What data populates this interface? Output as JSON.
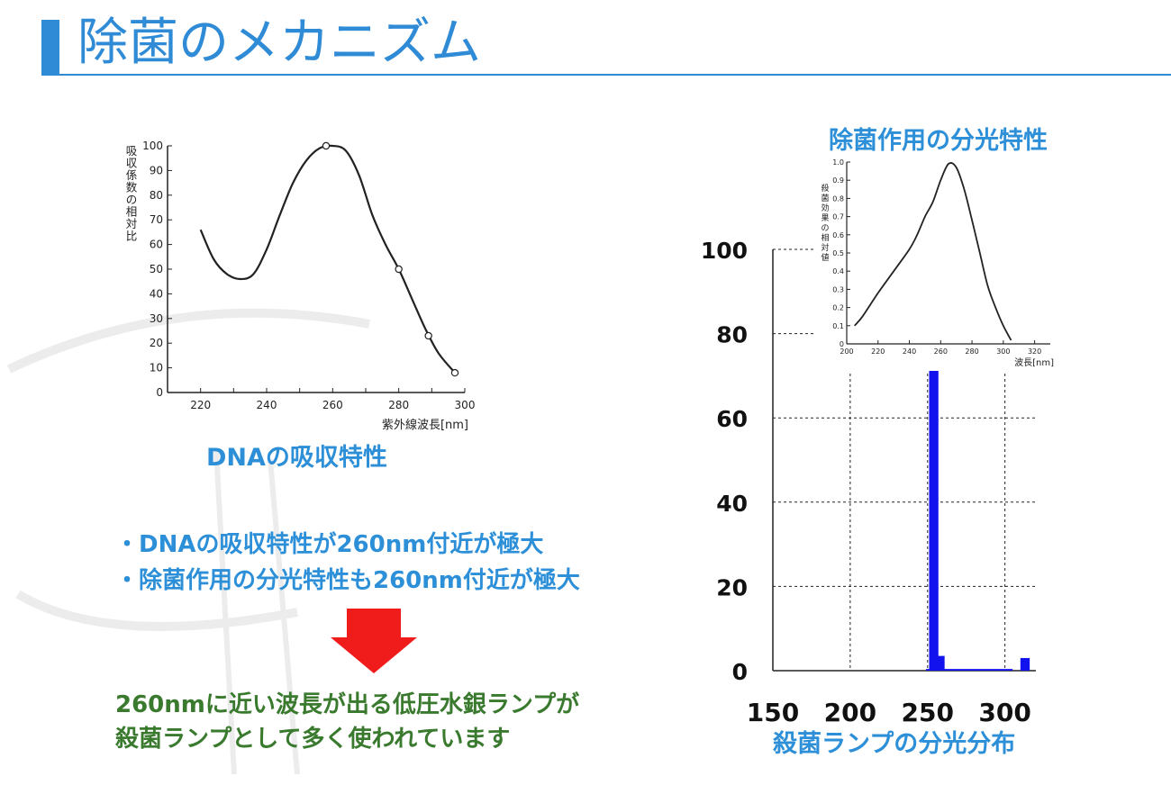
{
  "title": "除菌のメカニズム",
  "colors": {
    "accent": "#2f8bd6",
    "caption_blue": "#2c8fd8",
    "conclusion_green": "#3a7a2e",
    "arrow_red": "#f01c1c",
    "bar_blue": "#1212ee"
  },
  "bullets": [
    "・DNAの吸収特性が260nm付近が極大",
    "・除菌作用の分光特性も260nm付近が極大"
  ],
  "conclusion": [
    "260nmに近い波長が出る低圧水銀ランプが",
    "殺菌ランプとして多く使われています"
  ],
  "chart_data": [
    {
      "type": "line",
      "caption": "DNAの吸収特性",
      "ylabel": "吸収係数の相対比",
      "xlabel": "紫外線波長[nm]",
      "xlim": [
        210,
        300
      ],
      "ylim": [
        0,
        100
      ],
      "x_ticks": [
        220,
        240,
        260,
        280,
        300
      ],
      "y_ticks": [
        0,
        10,
        20,
        30,
        40,
        50,
        60,
        70,
        80,
        90,
        100
      ],
      "series": [
        {
          "x": [
            220,
            224,
            228,
            232,
            236,
            240,
            244,
            248,
            252,
            256,
            260,
            264,
            268,
            272,
            276,
            280,
            284,
            288,
            292,
            297
          ],
          "y": [
            66,
            54,
            48,
            46,
            48,
            58,
            72,
            85,
            94,
            99,
            100,
            98,
            88,
            72,
            60,
            50,
            38,
            26,
            16,
            8
          ]
        }
      ],
      "markers": {
        "x": [
          258,
          280,
          289,
          297
        ],
        "y": [
          100,
          50,
          23,
          8
        ]
      }
    },
    {
      "type": "line",
      "caption": "除菌作用の分光特性",
      "ylabel": "殺菌効果の相対値",
      "xlabel": "波長[nm]",
      "xlim": [
        200,
        330
      ],
      "ylim": [
        0,
        1.0
      ],
      "x_ticks": [
        200,
        220,
        240,
        260,
        280,
        300,
        320
      ],
      "y_ticks": [
        0,
        0.1,
        0.2,
        0.3,
        0.4,
        0.5,
        0.6,
        0.7,
        0.8,
        0.9,
        1.0
      ],
      "series": [
        {
          "x": [
            205,
            210,
            220,
            230,
            240,
            245,
            250,
            255,
            260,
            265,
            270,
            275,
            280,
            285,
            290,
            295,
            300,
            305
          ],
          "y": [
            0.1,
            0.15,
            0.28,
            0.4,
            0.52,
            0.6,
            0.7,
            0.78,
            0.9,
            0.99,
            0.97,
            0.85,
            0.68,
            0.5,
            0.32,
            0.2,
            0.1,
            0.02
          ]
        }
      ]
    },
    {
      "type": "bar",
      "caption": "殺菌ランプの分光分布",
      "xlim": [
        150,
        320
      ],
      "ylim": [
        0,
        100
      ],
      "x_ticks": [
        150,
        200,
        250,
        300
      ],
      "y_ticks": [
        0,
        20,
        40,
        60,
        80,
        100
      ],
      "grid": true,
      "bars": [
        {
          "x": 254,
          "y": 76
        },
        {
          "x": 258,
          "y": 3.5
        },
        {
          "x": 313,
          "y": 3
        }
      ],
      "baseline": {
        "x": [
          249,
          305
        ],
        "y": 0.4
      }
    }
  ]
}
